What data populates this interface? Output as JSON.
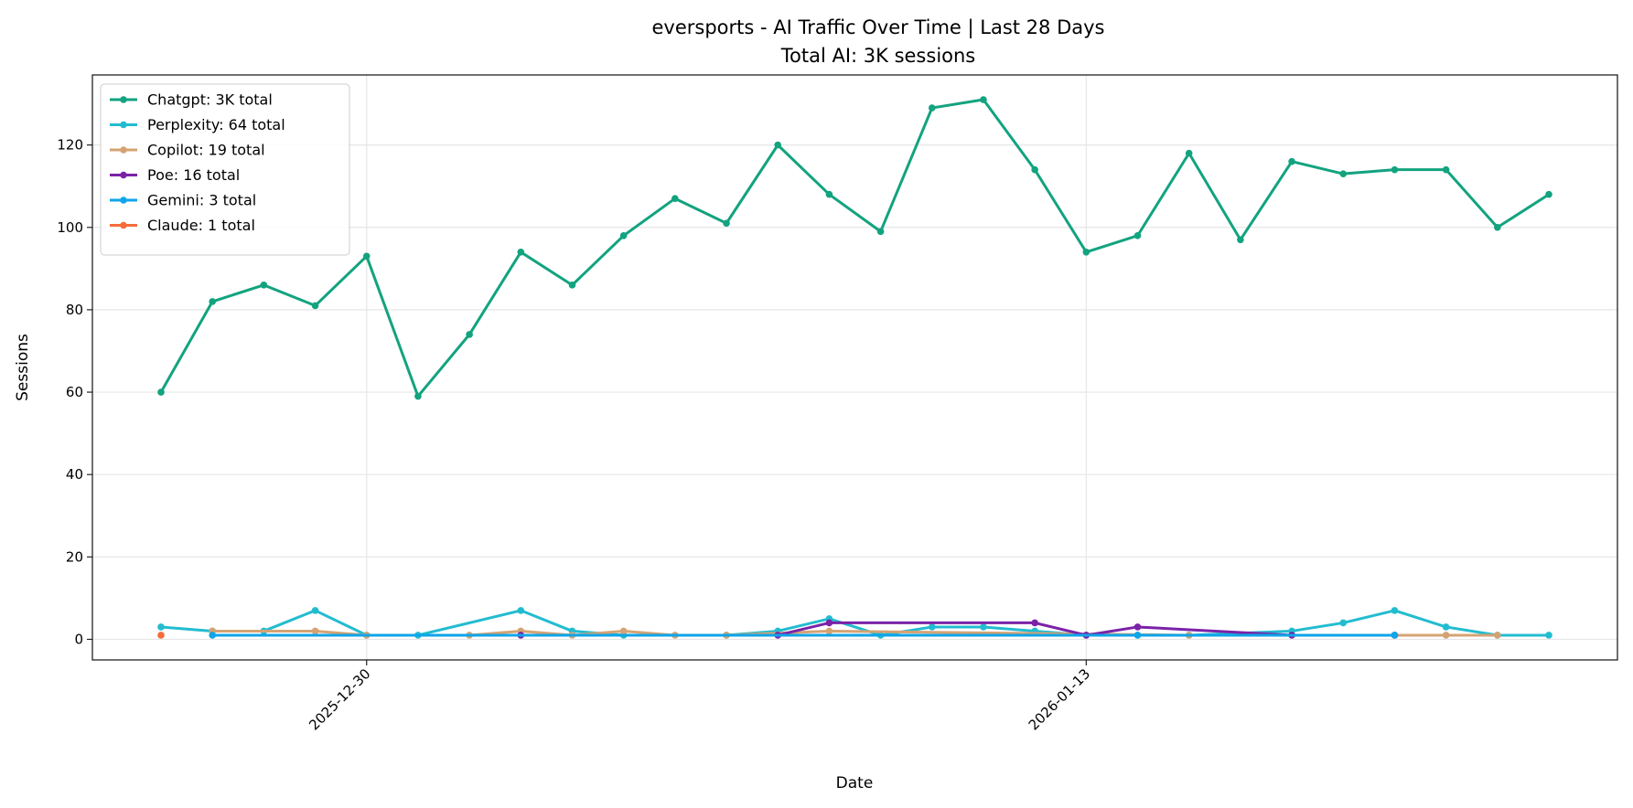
{
  "chart_data": {
    "type": "line",
    "title": "eversports - AI Traffic Over Time | Last 28 Days",
    "subtitle": "Total AI: 3K sessions",
    "xlabel": "Date",
    "ylabel": "Sessions",
    "x": [
      "2025-12-26",
      "2025-12-27",
      "2025-12-28",
      "2025-12-29",
      "2025-12-30",
      "2025-12-31",
      "2026-01-01",
      "2026-01-02",
      "2026-01-03",
      "2026-01-04",
      "2026-01-05",
      "2026-01-06",
      "2026-01-07",
      "2026-01-08",
      "2026-01-09",
      "2026-01-10",
      "2026-01-11",
      "2026-01-12",
      "2026-01-13",
      "2026-01-14",
      "2026-01-15",
      "2026-01-16",
      "2026-01-17",
      "2026-01-18",
      "2026-01-19",
      "2026-01-20",
      "2026-01-21",
      "2026-01-22"
    ],
    "xticks": [
      "2025-12-30",
      "2026-01-13"
    ],
    "yticks": [
      0,
      20,
      40,
      60,
      80,
      100,
      120
    ],
    "ylim": [
      -5,
      137
    ],
    "grid": true,
    "legend_position": "top-left",
    "series": [
      {
        "name": "Chatgpt: 3K total",
        "color": "#12a37f",
        "values": [
          60,
          82,
          86,
          81,
          93,
          59,
          74,
          94,
          86,
          98,
          107,
          101,
          120,
          108,
          99,
          129,
          131,
          114,
          94,
          98,
          118,
          97,
          116,
          113,
          114,
          114,
          100,
          108
        ]
      },
      {
        "name": "Perplexity: 64 total",
        "color": "#22bcd0",
        "values": [
          3,
          2,
          2,
          7,
          1,
          1,
          null,
          7,
          2,
          1,
          null,
          1,
          2,
          5,
          1,
          3,
          3,
          2,
          1,
          1,
          1,
          null,
          2,
          4,
          7,
          3,
          1,
          1
        ]
      },
      {
        "name": "Copilot: 19 total",
        "color": "#d4a373",
        "values": [
          null,
          2,
          null,
          2,
          1,
          null,
          1,
          2,
          1,
          2,
          1,
          1,
          null,
          2,
          null,
          null,
          null,
          null,
          null,
          null,
          1,
          null,
          null,
          null,
          1,
          1,
          1,
          null
        ]
      },
      {
        "name": "Poe: 16 total",
        "color": "#7b22a8",
        "values": [
          null,
          null,
          null,
          null,
          null,
          null,
          null,
          1,
          null,
          null,
          null,
          null,
          1,
          4,
          null,
          null,
          null,
          4,
          1,
          3,
          null,
          null,
          1,
          null,
          1,
          null,
          null,
          null
        ]
      },
      {
        "name": "Gemini: 3 total",
        "color": "#0ea5e9",
        "values": [
          null,
          1,
          null,
          null,
          null,
          null,
          null,
          null,
          null,
          null,
          null,
          null,
          null,
          null,
          null,
          null,
          null,
          null,
          null,
          1,
          null,
          null,
          null,
          null,
          1,
          null,
          null,
          null
        ]
      },
      {
        "name": "Claude: 1 total",
        "color": "#f56c3b",
        "values": [
          1,
          null,
          null,
          null,
          null,
          null,
          null,
          null,
          null,
          null,
          null,
          null,
          null,
          null,
          null,
          null,
          null,
          null,
          null,
          null,
          null,
          null,
          null,
          null,
          null,
          null,
          null,
          null
        ]
      }
    ]
  }
}
